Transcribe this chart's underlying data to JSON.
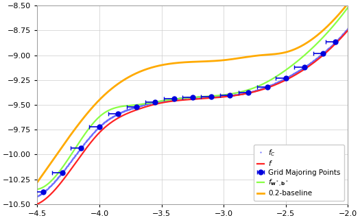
{
  "xlim": [
    -4.5,
    -2.0
  ],
  "ylim": [
    -10.5,
    -8.5
  ],
  "xticks": [
    -4.5,
    -4.0,
    -3.5,
    -3.0,
    -2.5,
    -2.0
  ],
  "yticks": [
    -10.5,
    -10.25,
    -10.0,
    -9.75,
    -9.5,
    -9.25,
    -9.0,
    -8.75,
    -8.5
  ],
  "grid_color": "#cccccc",
  "bg_color": "#ffffff",
  "fc_color": "#6666ff",
  "f_color": "#ff2222",
  "gmp_color": "#0000dd",
  "fw_color": "#88ff44",
  "baseline_color": "#ffaa00",
  "figsize": [
    5.25,
    3.21
  ],
  "dpi": 100
}
